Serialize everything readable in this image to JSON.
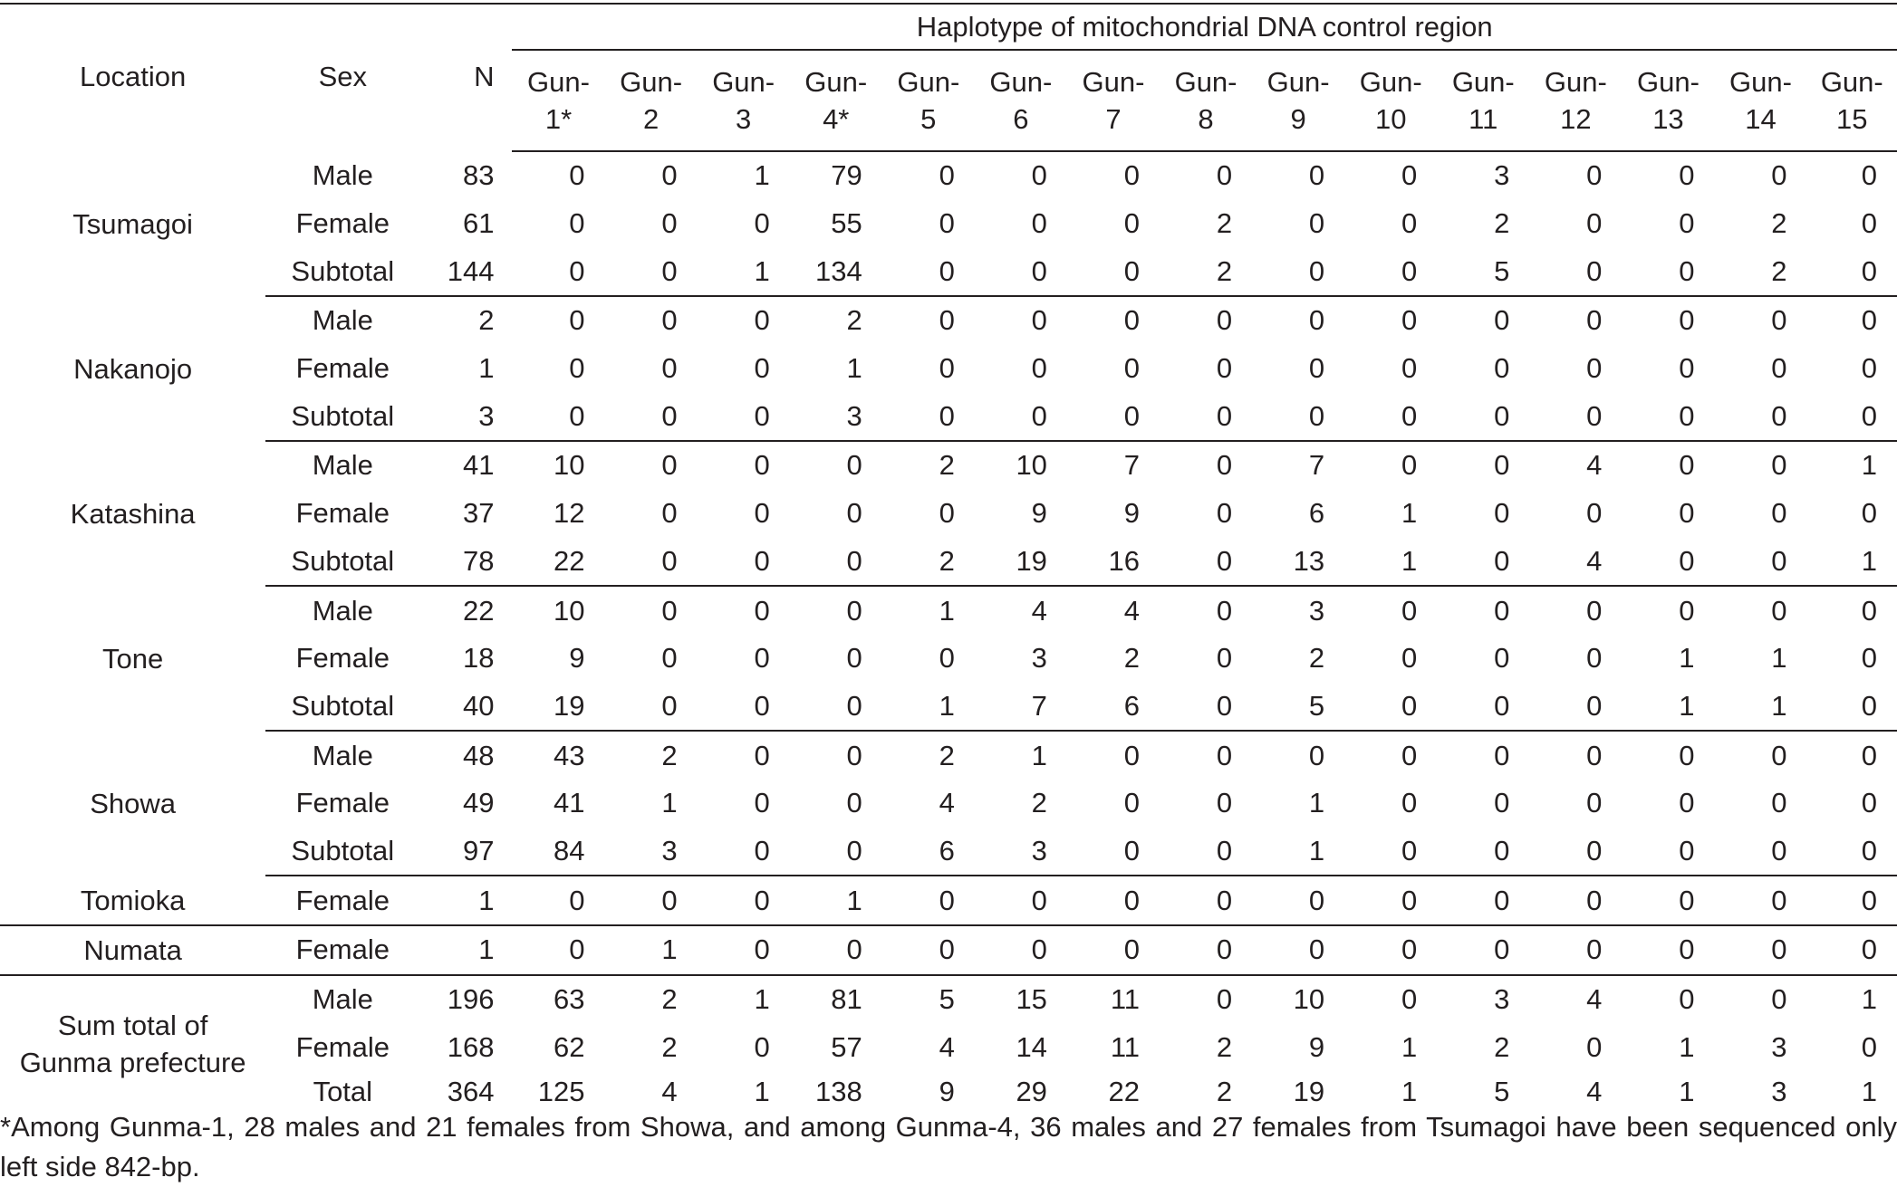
{
  "header": {
    "location": "Location",
    "sex": "Sex",
    "n": "N",
    "haplotype_title": "Haplotype of mitochondrial DNA control region",
    "haplotypes": [
      [
        "Gun-",
        "1*"
      ],
      [
        "Gun-",
        "2"
      ],
      [
        "Gun-",
        "3"
      ],
      [
        "Gun-",
        "4*"
      ],
      [
        "Gun-",
        "5"
      ],
      [
        "Gun-",
        "6"
      ],
      [
        "Gun-",
        "7"
      ],
      [
        "Gun-",
        "8"
      ],
      [
        "Gun-",
        "9"
      ],
      [
        "Gun-",
        "10"
      ],
      [
        "Gun-",
        "11"
      ],
      [
        "Gun-",
        "12"
      ],
      [
        "Gun-",
        "13"
      ],
      [
        "Gun-",
        "14"
      ],
      [
        "Gun-",
        "15"
      ]
    ]
  },
  "groups": [
    {
      "location": [
        "Tsumagoi"
      ],
      "rows": [
        {
          "sex": "Male",
          "n": "83",
          "values": [
            "0",
            "0",
            "1",
            "79",
            "0",
            "0",
            "0",
            "0",
            "0",
            "0",
            "3",
            "0",
            "0",
            "0",
            "0"
          ]
        },
        {
          "sex": "Female",
          "n": "61",
          "values": [
            "0",
            "0",
            "0",
            "55",
            "0",
            "0",
            "0",
            "2",
            "0",
            "0",
            "2",
            "0",
            "0",
            "2",
            "0"
          ]
        },
        {
          "sex": "Subtotal",
          "n": "144",
          "values": [
            "0",
            "0",
            "1",
            "134",
            "0",
            "0",
            "0",
            "2",
            "0",
            "0",
            "5",
            "0",
            "0",
            "2",
            "0"
          ]
        }
      ]
    },
    {
      "location": [
        "Nakanojo"
      ],
      "rows": [
        {
          "sex": "Male",
          "n": "2",
          "values": [
            "0",
            "0",
            "0",
            "2",
            "0",
            "0",
            "0",
            "0",
            "0",
            "0",
            "0",
            "0",
            "0",
            "0",
            "0"
          ]
        },
        {
          "sex": "Female",
          "n": "1",
          "values": [
            "0",
            "0",
            "0",
            "1",
            "0",
            "0",
            "0",
            "0",
            "0",
            "0",
            "0",
            "0",
            "0",
            "0",
            "0"
          ]
        },
        {
          "sex": "Subtotal",
          "n": "3",
          "values": [
            "0",
            "0",
            "0",
            "3",
            "0",
            "0",
            "0",
            "0",
            "0",
            "0",
            "0",
            "0",
            "0",
            "0",
            "0"
          ]
        }
      ]
    },
    {
      "location": [
        "Katashina"
      ],
      "rows": [
        {
          "sex": "Male",
          "n": "41",
          "values": [
            "10",
            "0",
            "0",
            "0",
            "2",
            "10",
            "7",
            "0",
            "7",
            "0",
            "0",
            "4",
            "0",
            "0",
            "1"
          ]
        },
        {
          "sex": "Female",
          "n": "37",
          "values": [
            "12",
            "0",
            "0",
            "0",
            "0",
            "9",
            "9",
            "0",
            "6",
            "1",
            "0",
            "0",
            "0",
            "0",
            "0"
          ]
        },
        {
          "sex": "Subtotal",
          "n": "78",
          "values": [
            "22",
            "0",
            "0",
            "0",
            "2",
            "19",
            "16",
            "0",
            "13",
            "1",
            "0",
            "4",
            "0",
            "0",
            "1"
          ]
        }
      ]
    },
    {
      "location": [
        "Tone"
      ],
      "rows": [
        {
          "sex": "Male",
          "n": "22",
          "values": [
            "10",
            "0",
            "0",
            "0",
            "1",
            "4",
            "4",
            "0",
            "3",
            "0",
            "0",
            "0",
            "0",
            "0",
            "0"
          ]
        },
        {
          "sex": "Female",
          "n": "18",
          "values": [
            "9",
            "0",
            "0",
            "0",
            "0",
            "3",
            "2",
            "0",
            "2",
            "0",
            "0",
            "0",
            "1",
            "1",
            "0"
          ]
        },
        {
          "sex": "Subtotal",
          "n": "40",
          "values": [
            "19",
            "0",
            "0",
            "0",
            "1",
            "7",
            "6",
            "0",
            "5",
            "0",
            "0",
            "0",
            "1",
            "1",
            "0"
          ]
        }
      ]
    },
    {
      "location": [
        "Showa"
      ],
      "rows": [
        {
          "sex": "Male",
          "n": "48",
          "values": [
            "43",
            "2",
            "0",
            "0",
            "2",
            "1",
            "0",
            "0",
            "0",
            "0",
            "0",
            "0",
            "0",
            "0",
            "0"
          ]
        },
        {
          "sex": "Female",
          "n": "49",
          "values": [
            "41",
            "1",
            "0",
            "0",
            "4",
            "2",
            "0",
            "0",
            "1",
            "0",
            "0",
            "0",
            "0",
            "0",
            "0"
          ]
        },
        {
          "sex": "Subtotal",
          "n": "97",
          "values": [
            "84",
            "3",
            "0",
            "0",
            "6",
            "3",
            "0",
            "0",
            "1",
            "0",
            "0",
            "0",
            "0",
            "0",
            "0"
          ]
        }
      ]
    },
    {
      "location": [
        "Tomioka"
      ],
      "rows": [
        {
          "sex": "Female",
          "n": "1",
          "values": [
            "0",
            "0",
            "0",
            "1",
            "0",
            "0",
            "0",
            "0",
            "0",
            "0",
            "0",
            "0",
            "0",
            "0",
            "0"
          ]
        }
      ]
    },
    {
      "location": [
        "Numata"
      ],
      "rows": [
        {
          "sex": "Female",
          "n": "1",
          "values": [
            "0",
            "1",
            "0",
            "0",
            "0",
            "0",
            "0",
            "0",
            "0",
            "0",
            "0",
            "0",
            "0",
            "0",
            "0"
          ]
        }
      ]
    },
    {
      "location": [
        "Sum total of",
        "Gunma prefecture"
      ],
      "rows": [
        {
          "sex": "Male",
          "n": "196",
          "values": [
            "63",
            "2",
            "1",
            "81",
            "5",
            "15",
            "11",
            "0",
            "10",
            "0",
            "3",
            "4",
            "0",
            "0",
            "1"
          ]
        },
        {
          "sex": "Female",
          "n": "168",
          "values": [
            "62",
            "2",
            "0",
            "57",
            "4",
            "14",
            "11",
            "2",
            "9",
            "1",
            "2",
            "0",
            "1",
            "3",
            "0"
          ]
        },
        {
          "sex": "Total",
          "n": "364",
          "values": [
            "125",
            "4",
            "1",
            "138",
            "9",
            "29",
            "22",
            "2",
            "19",
            "1",
            "5",
            "4",
            "1",
            "3",
            "1"
          ]
        }
      ]
    }
  ],
  "footnote": "*Among Gunma-1, 28 males and 21 females from Showa, and among Gunma-4, 36 males and 27 females from Tsumagoi have been sequenced only left side 842-bp."
}
